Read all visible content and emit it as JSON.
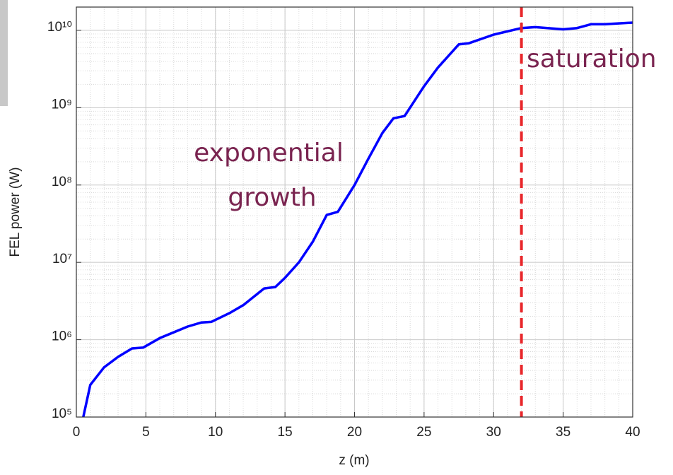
{
  "chart_data": {
    "type": "line",
    "xlabel": "z (m)",
    "ylabel": "FEL power (W)",
    "x": [
      0.5,
      1,
      2,
      3,
      4,
      4.8,
      6,
      8,
      9,
      9.7,
      11,
      12,
      13.5,
      14.3,
      15,
      16,
      17,
      18,
      18.8,
      20,
      21,
      22,
      22.8,
      23.6,
      25,
      26,
      27.5,
      28.2,
      30,
      32,
      33,
      35,
      36,
      37,
      38,
      40
    ],
    "series": [
      {
        "color": "#0000ff",
        "values": [
          100000,
          260000,
          440000,
          600000,
          770000,
          790000,
          1050000,
          1480000,
          1670000,
          1700000,
          2200000,
          2800000,
          4600000,
          4800000,
          6300000,
          10000000,
          18500000,
          41000000,
          45000000,
          100000000,
          220000000,
          470000000,
          730000000,
          780000000,
          1900000000,
          3300000000,
          6600000000,
          6800000000,
          8800000000,
          10700000000,
          11000000000,
          10300000000,
          10700000000,
          12000000000,
          12000000000,
          12600000000
        ]
      }
    ],
    "xlim": [
      0,
      40
    ],
    "xticks": [
      0,
      5,
      10,
      15,
      20,
      25,
      30,
      35,
      40
    ],
    "ylim": [
      100000,
      20000000000
    ],
    "ylog": true,
    "yticks": [
      {
        "value": 100000,
        "label": "10⁵"
      },
      {
        "value": 1000000,
        "label": "10⁶"
      },
      {
        "value": 10000000,
        "label": "10⁷"
      },
      {
        "value": 100000000,
        "label": "10⁸"
      },
      {
        "value": 1000000000,
        "label": "10⁹"
      },
      {
        "value": 10000000000,
        "label": "10¹⁰"
      }
    ],
    "grid": true,
    "vline": {
      "value": 32,
      "color": "#e8262a"
    },
    "annotations": [
      "exponential",
      "growth",
      "saturation"
    ]
  }
}
